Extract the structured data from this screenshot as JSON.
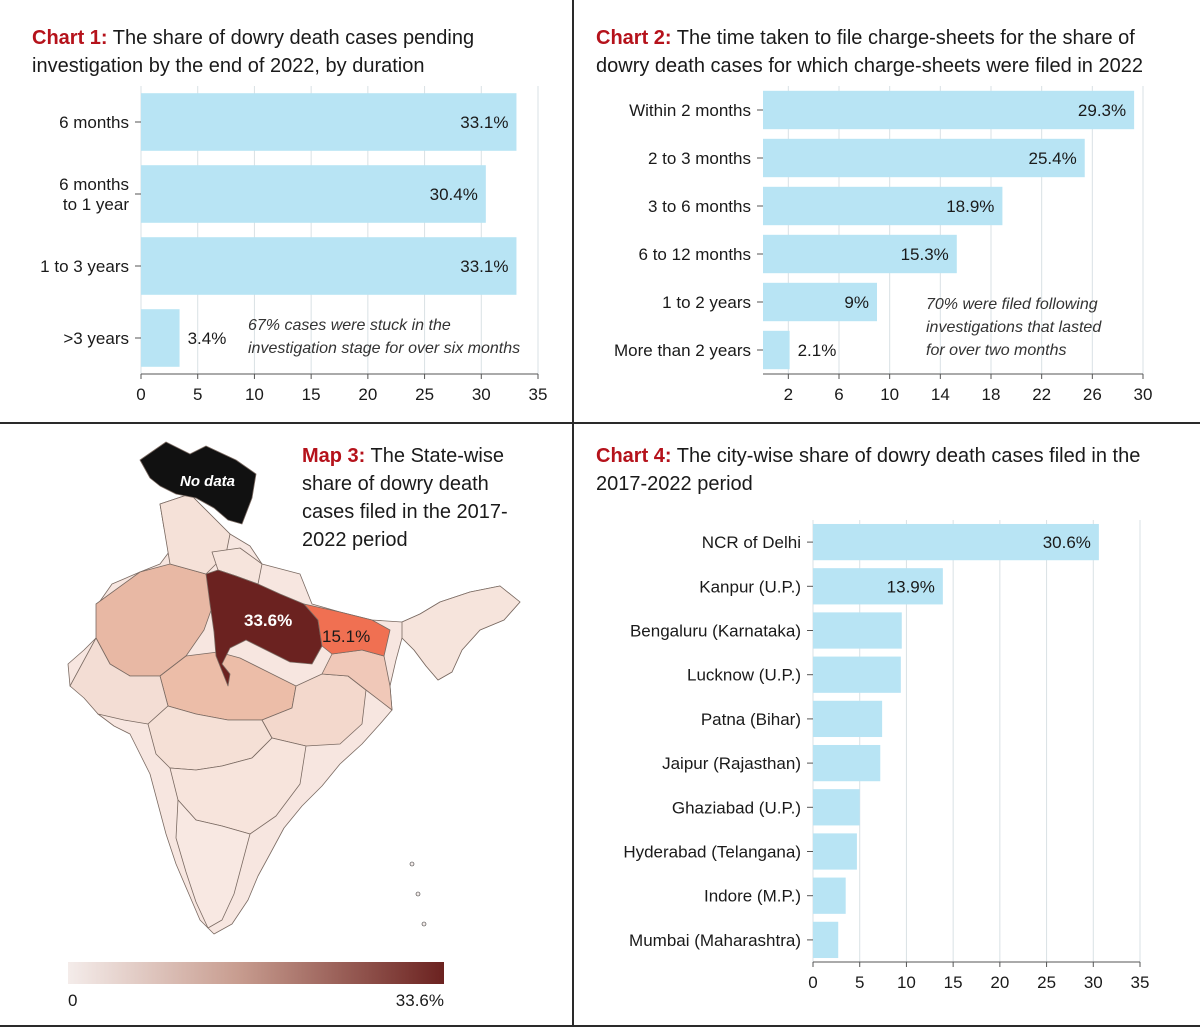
{
  "colors": {
    "bar": "#b8e4f4",
    "title_label": "#b5121b",
    "map_low": "#f6ecea",
    "map_high": "#6b2220",
    "map_mid": "#f07052",
    "no_data": "#111111"
  },
  "chart_data": [
    {
      "id": "chart1",
      "type": "bar",
      "orientation": "horizontal",
      "title_label": "Chart 1:",
      "title": "The share of dowry death cases pending investigation by the end of 2022, by duration",
      "categories": [
        "6 months",
        "6 months to 1 year",
        "1 to 3 years",
        ">3 years"
      ],
      "values": [
        33.1,
        30.4,
        33.1,
        3.4
      ],
      "value_labels": [
        "33.1%",
        "30.4%",
        "33.1%",
        "3.4%"
      ],
      "xlim": [
        0,
        35
      ],
      "xticks": [
        0,
        5,
        10,
        15,
        20,
        25,
        30,
        35
      ],
      "grid": true,
      "annotation": [
        "67% cases were stuck in the",
        "investigation stage for over six months"
      ]
    },
    {
      "id": "chart2",
      "type": "bar",
      "orientation": "horizontal",
      "title_label": "Chart 2:",
      "title": "The time taken to file charge-sheets for the share of dowry death cases for which charge-sheets were filed in 2022",
      "categories": [
        "Within 2 months",
        "2 to 3 months",
        "3 to 6 months",
        "6 to 12 months",
        "1 to 2 years",
        "More than 2 years"
      ],
      "values": [
        29.3,
        25.4,
        18.9,
        15.3,
        9,
        2.1
      ],
      "value_labels": [
        "29.3%",
        "25.4%",
        "18.9%",
        "15.3%",
        "9%",
        "2.1%"
      ],
      "xlim": [
        0,
        30
      ],
      "xticks": [
        2,
        6,
        10,
        14,
        18,
        22,
        26,
        30
      ],
      "grid": true,
      "annotation": [
        "70% were filed following",
        "investigations that lasted",
        "for over two months"
      ]
    },
    {
      "id": "map3",
      "type": "choropleth",
      "title_label": "Map 3:",
      "title": "The State-wise share of dowry death cases filed in the 2017-2022 period",
      "labels": [
        {
          "region": "Uttar Pradesh",
          "value": 33.6,
          "text": "33.6%"
        },
        {
          "region": "Bihar",
          "value": 15.1,
          "text": "15.1%"
        }
      ],
      "no_data_label": "No data",
      "legend": {
        "min_label": "0",
        "max_label": "33.6%",
        "min": 0,
        "max": 33.6
      }
    },
    {
      "id": "chart4",
      "type": "bar",
      "orientation": "horizontal",
      "title_label": "Chart 4:",
      "title": "The city-wise share of dowry death cases filed in the 2017-2022 period",
      "categories": [
        "NCR of Delhi",
        "Kanpur (U.P.)",
        "Bengaluru (Karnataka)",
        "Lucknow (U.P.)",
        "Patna (Bihar)",
        "Jaipur (Rajasthan)",
        "Ghaziabad (U.P.)",
        "Hyderabad (Telangana)",
        "Indore (M.P.)",
        "Mumbai (Maharashtra)"
      ],
      "values": [
        30.6,
        13.9,
        9.5,
        9.4,
        7.4,
        7.2,
        5.0,
        4.7,
        3.5,
        2.7
      ],
      "value_labels": [
        "30.6%",
        "13.9%",
        "",
        "",
        "",
        "",
        "",
        "",
        "",
        ""
      ],
      "xlim": [
        0,
        35
      ],
      "xticks": [
        0,
        5,
        10,
        15,
        20,
        25,
        30,
        35
      ],
      "grid": true
    }
  ]
}
